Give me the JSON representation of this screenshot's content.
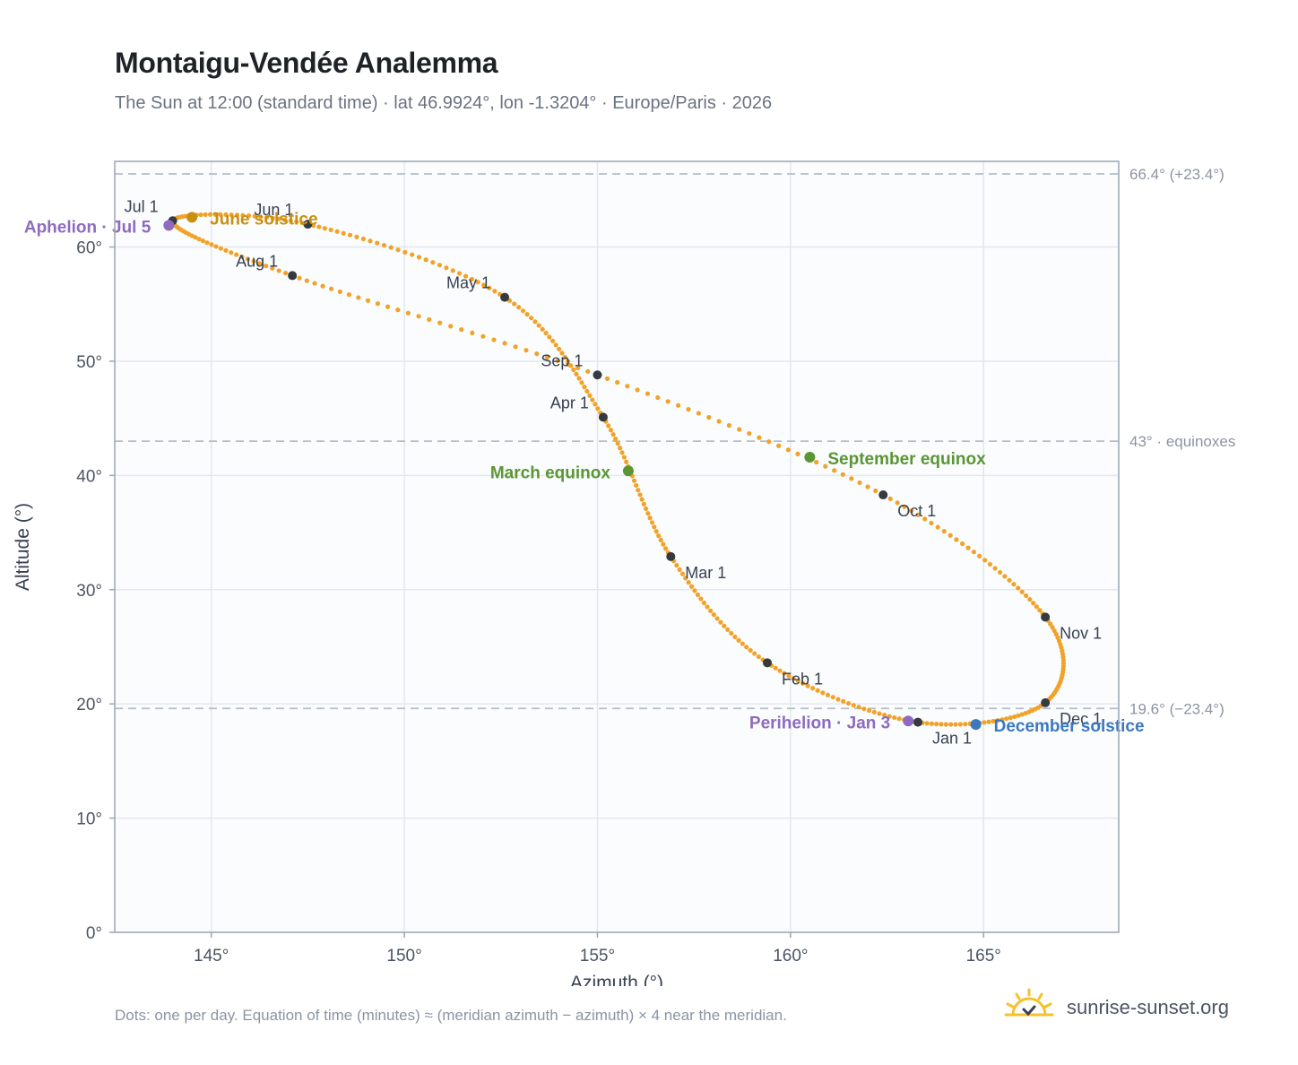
{
  "title": "Montaigu-Vendée Analemma",
  "subtitle": "The Sun at 12:00 (standard time) · lat 46.9924°, lon -1.3204° · Europe/Paris · 2026",
  "footnote": "Dots: one per day. Equation of time (minutes) ≈ (meridian azimuth − azimuth) × 4 near the meridian.",
  "brand": {
    "text": "sunrise-sunset.org",
    "icon": "sun-logo-icon"
  },
  "chart_data": {
    "type": "scatter",
    "xlabel": "Azimuth (°)",
    "ylabel": "Altitude (°)",
    "xlim": [
      142.5,
      168.5
    ],
    "ylim": [
      0,
      67.5
    ],
    "xticks": [
      145,
      150,
      155,
      160,
      165
    ],
    "yticks": [
      0,
      10,
      20,
      30,
      40,
      50,
      60
    ],
    "xtick_labels": [
      "145°",
      "150°",
      "155°",
      "160°",
      "165°"
    ],
    "ytick_labels": [
      "0°",
      "10°",
      "20°",
      "30°",
      "40°",
      "50°",
      "60°"
    ],
    "grid": true,
    "reference_lines": [
      {
        "y": 66.4,
        "label": "66.4° (+23.4°)"
      },
      {
        "y": 43.0,
        "label": "43° · equinoxes"
      },
      {
        "y": 19.6,
        "label": "19.6° (−23.4°)"
      }
    ],
    "month_markers": [
      {
        "label": "Jan 1",
        "az": 163.3,
        "alt": 18.4
      },
      {
        "label": "Feb 1",
        "az": 159.4,
        "alt": 23.6
      },
      {
        "label": "Mar 1",
        "az": 156.9,
        "alt": 32.9
      },
      {
        "label": "Apr 1",
        "az": 155.15,
        "alt": 45.1
      },
      {
        "label": "May 1",
        "az": 152.6,
        "alt": 55.6
      },
      {
        "label": "Jun 1",
        "az": 147.5,
        "alt": 62.0
      },
      {
        "label": "Jul 1",
        "az": 144.0,
        "alt": 62.3
      },
      {
        "label": "Aug 1",
        "az": 147.1,
        "alt": 57.5
      },
      {
        "label": "Sep 1",
        "az": 155.0,
        "alt": 48.8
      },
      {
        "label": "Oct 1",
        "az": 162.4,
        "alt": 38.3
      },
      {
        "label": "Nov 1",
        "az": 166.6,
        "alt": 27.6
      },
      {
        "label": "Dec 1",
        "az": 166.6,
        "alt": 20.1
      }
    ],
    "events": [
      {
        "label": "June solstice",
        "az": 144.5,
        "alt": 62.6,
        "color": "#c8900f"
      },
      {
        "label": "Aphelion · Jul 5",
        "az": 143.9,
        "alt": 61.9,
        "color": "#8e6bbf"
      },
      {
        "label": "March equinox",
        "az": 155.8,
        "alt": 40.4,
        "color": "#5a9634"
      },
      {
        "label": "September equinox",
        "az": 160.5,
        "alt": 41.6,
        "color": "#5a9634"
      },
      {
        "label": "Perihelion · Jan 3",
        "az": 163.05,
        "alt": 18.5,
        "color": "#8e6bbf"
      },
      {
        "label": "December solstice",
        "az": 164.8,
        "alt": 18.2,
        "color": "#3a78c0"
      }
    ],
    "colors": {
      "daily_dots": "#f2a228",
      "month_marker": "#343a40",
      "reference_line": "#b4bec8",
      "plot_bg": "#fafcfe",
      "frame": "#9aa6b4"
    }
  }
}
